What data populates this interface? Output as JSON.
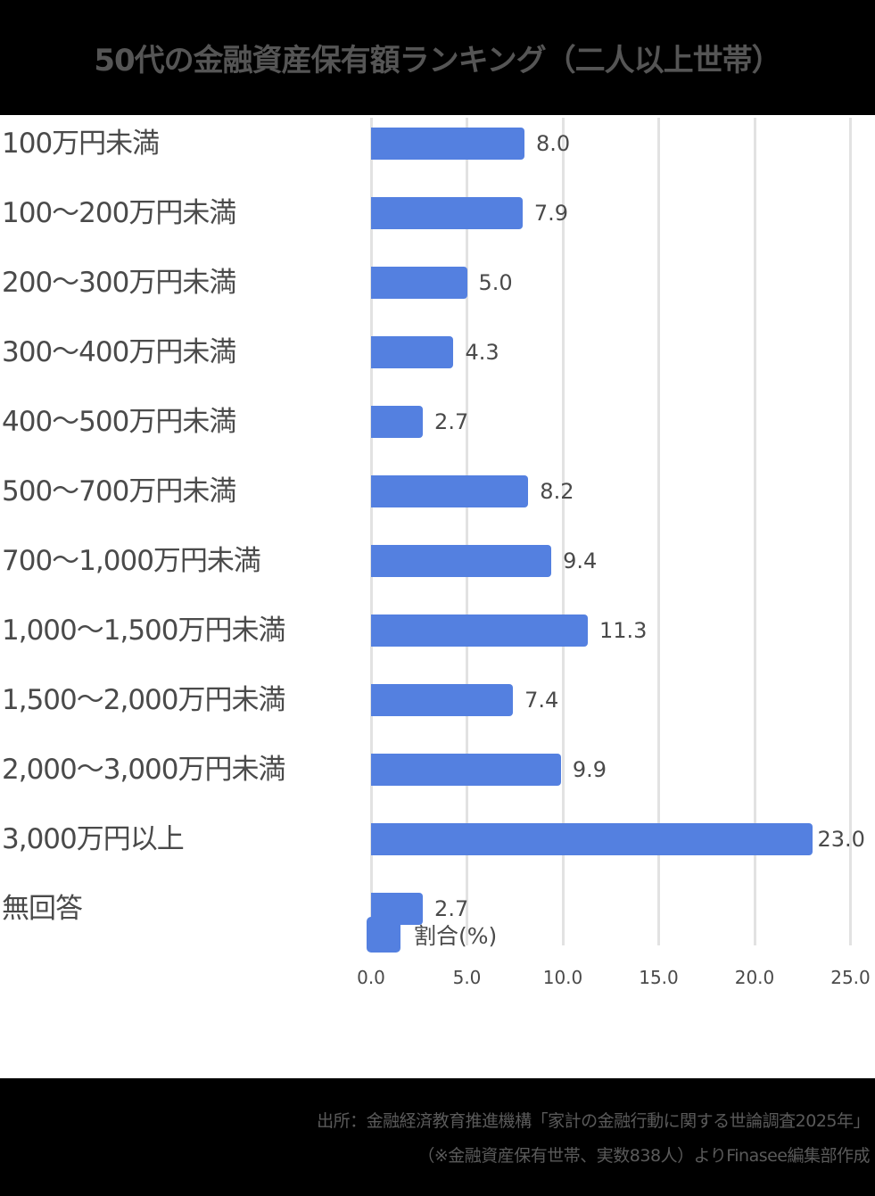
{
  "header": {
    "title": "50代の金融資産保有額ランキング（二人以上世帯）"
  },
  "colors": {
    "bar": "#5480e0",
    "header_bg": "#000000",
    "grid": "#e2e2e2"
  },
  "chart_data": {
    "type": "bar",
    "orientation": "horizontal",
    "title": "50代の金融資産保有額ランキング（二人以上世帯）",
    "categories": [
      "100万円未満",
      "100〜200万円未満",
      "200〜300万円未満",
      "300〜400万円未満",
      "400〜500万円未満",
      "500〜700万円未満",
      "700〜1,000万円未満",
      "1,000〜1,500万円未満",
      "1,500〜2,000万円未満",
      "2,000〜3,000万円未満",
      "3,000万円以上",
      "無回答"
    ],
    "series": [
      {
        "name": "割合(%)",
        "values": [
          8.0,
          7.9,
          5.0,
          4.3,
          2.7,
          8.2,
          9.4,
          11.3,
          7.4,
          9.9,
          23.0,
          2.7
        ],
        "color": "#5480e0"
      }
    ],
    "value_labels": [
      "8.0",
      "7.9",
      "5.0",
      "4.3",
      "2.7",
      "8.2",
      "9.4",
      "11.3",
      "7.4",
      "9.9",
      "23.0",
      "2.7"
    ],
    "xlabel": "",
    "ylabel": "",
    "xlim": [
      0,
      25
    ],
    "x_ticks": [
      "0.0",
      "5.0",
      "10.0",
      "15.0",
      "20.0",
      "25.0"
    ],
    "grid": true,
    "legend_position": "bottom"
  },
  "legend": {
    "label": "割合(%)"
  },
  "footer": {
    "source_line1": "出所：金融経済教育推進機構「家計の金融行動に関する世論調査2025年」",
    "source_line2": "（※金融資産保有世帯、実数838人）よりFinasee編集部作成"
  }
}
